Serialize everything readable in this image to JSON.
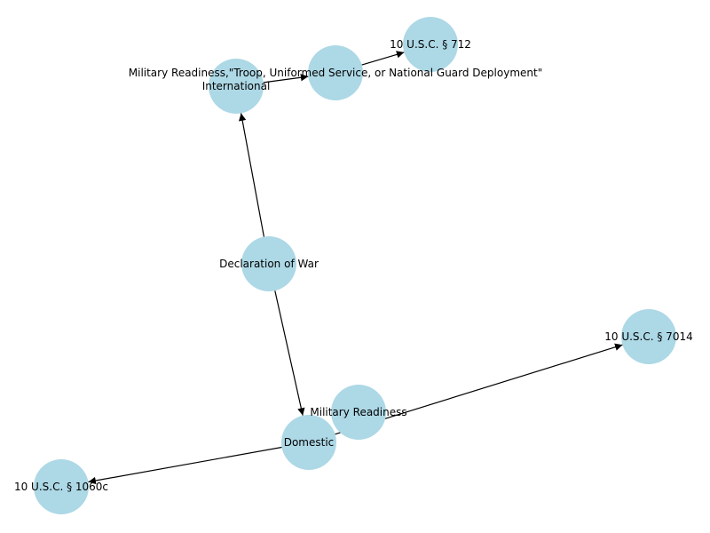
{
  "colors": {
    "node_fill": "#add8e6",
    "edge": "#000000",
    "label": "#000000"
  },
  "nodes": [
    {
      "id": "declaration",
      "label": "Declaration of War"
    },
    {
      "id": "international",
      "label": "International"
    },
    {
      "id": "mr-troop",
      "label": "Military Readiness,\"Troop, Uniformed Service, or National Guard Deployment\""
    },
    {
      "id": "usc712",
      "label": "10 U.S.C. § 712"
    },
    {
      "id": "domestic",
      "label": "Domestic"
    },
    {
      "id": "military-readiness",
      "label": "Military Readiness"
    },
    {
      "id": "usc7014",
      "label": "10 U.S.C. § 7014"
    },
    {
      "id": "usc1060c",
      "label": "10 U.S.C. § 1060c"
    }
  ],
  "edges": [
    {
      "from": "declaration",
      "to": "international"
    },
    {
      "from": "declaration",
      "to": "domestic"
    },
    {
      "from": "international",
      "to": "mr-troop"
    },
    {
      "from": "mr-troop",
      "to": "usc712"
    },
    {
      "from": "domestic",
      "to": "usc7014"
    },
    {
      "from": "domestic",
      "to": "usc1060c"
    }
  ]
}
